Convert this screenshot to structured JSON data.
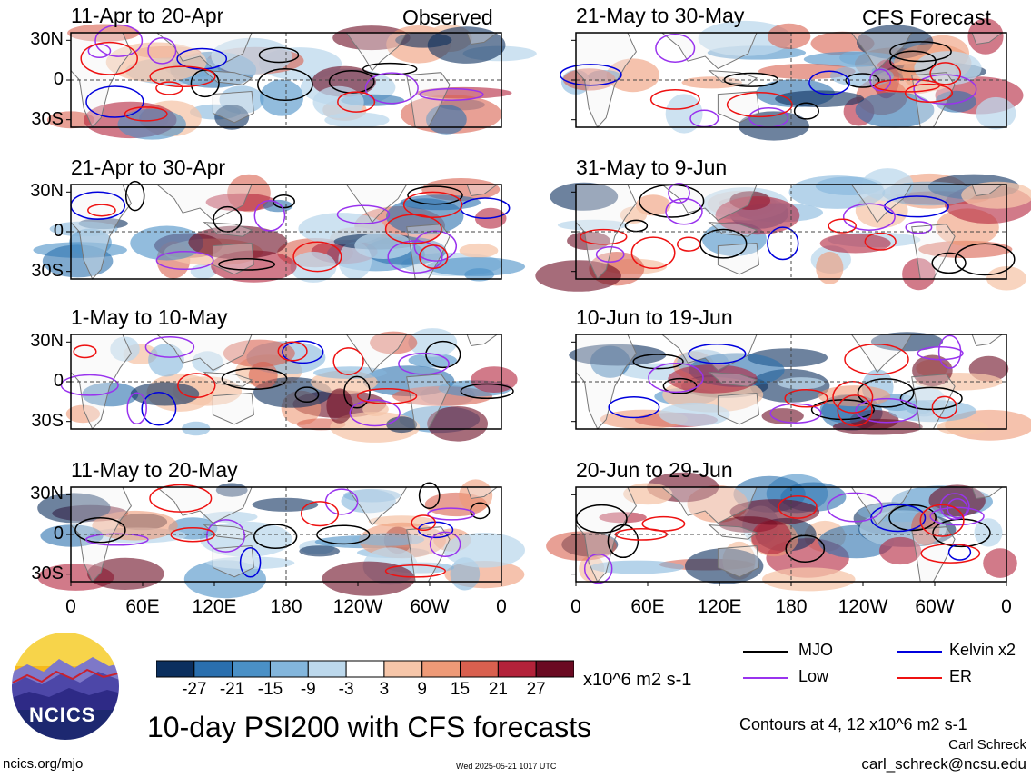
{
  "observed_label": "Observed",
  "forecast_label": "CFS Forecast",
  "panels_left": [
    {
      "title": "11-Apr to 20-Apr"
    },
    {
      "title": "21-Apr to 30-Apr"
    },
    {
      "title": "1-May to 10-May"
    },
    {
      "title": "11-May to 20-May"
    }
  ],
  "panels_right": [
    {
      "title": "21-May to 30-May"
    },
    {
      "title": "31-May to 9-Jun"
    },
    {
      "title": "10-Jun to 19-Jun"
    },
    {
      "title": "20-Jun to 29-Jun"
    }
  ],
  "lat_ticks": [
    "30N",
    "0",
    "30S"
  ],
  "lon_ticks": [
    "0",
    "60E",
    "120E",
    "180",
    "120W",
    "60W",
    "0"
  ],
  "colorbar": {
    "colors": [
      "#0b2f5e",
      "#2a6fae",
      "#4a90c6",
      "#83b6dc",
      "#bcd8ec",
      "#ffffff",
      "#f6c6a9",
      "#ee9a77",
      "#d9604f",
      "#b3223a",
      "#6a0a22"
    ],
    "labels": [
      "-27",
      "-21",
      "-15",
      "-9",
      "-3",
      "3",
      "9",
      "15",
      "21",
      "27"
    ],
    "unit": "x10^6 m2 s-1"
  },
  "legend": [
    {
      "label": "MJO",
      "color": "#000000"
    },
    {
      "label": "Kelvin x2",
      "color": "#0000dd"
    },
    {
      "label": "Low",
      "color": "#9933ee"
    },
    {
      "label": "ER",
      "color": "#ee1111"
    }
  ],
  "main_title": "10-day PSI200 with CFS forecasts",
  "contours_note": "Contours at 4, 12 x10^6 m2 s-1",
  "author": "Carl Schreck",
  "email": "carl_schreck@ncsu.edu",
  "site": "ncics.org/mjo",
  "timestamp": "Wed 2025-05-21 1017 UTC",
  "logo_text": "NCICS",
  "chart_data": {
    "type": "heatmap",
    "variable": "10-day PSI200 with CFS forecasts",
    "units": "x10^6 m2 s-1",
    "color_levels": [
      -27,
      -21,
      -15,
      -9,
      -3,
      3,
      9,
      15,
      21,
      27
    ],
    "contour_levels": [
      4,
      12
    ],
    "contour_series": [
      "MJO",
      "Kelvin x2",
      "Low",
      "ER"
    ],
    "panels": [
      {
        "title": "11-Apr to 20-Apr",
        "type": "Observed"
      },
      {
        "title": "21-Apr to 30-Apr",
        "type": "Observed"
      },
      {
        "title": "1-May to 10-May",
        "type": "Observed"
      },
      {
        "title": "11-May to 20-May",
        "type": "Observed"
      },
      {
        "title": "21-May to 30-May",
        "type": "CFS Forecast"
      },
      {
        "title": "31-May to 9-Jun",
        "type": "CFS Forecast"
      },
      {
        "title": "10-Jun to 19-Jun",
        "type": "CFS Forecast"
      },
      {
        "title": "20-Jun to 29-Jun",
        "type": "CFS Forecast"
      }
    ],
    "y_ticks": [
      "30N",
      "0",
      "30S"
    ],
    "x_ticks": [
      "0",
      "60E",
      "120E",
      "180",
      "120W",
      "60W",
      "0"
    ]
  }
}
